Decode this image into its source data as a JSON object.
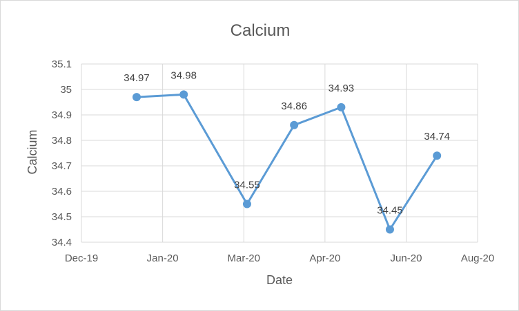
{
  "chart_data": {
    "type": "line",
    "title": "Calcium",
    "xlabel": "Date",
    "ylabel": "Calcium",
    "x_ticks": [
      "Dec-19",
      "Jan-20",
      "Mar-20",
      "Apr-20",
      "Jun-20",
      "Aug-20"
    ],
    "y_ticks": [
      "34.4",
      "34.5",
      "34.6",
      "34.7",
      "34.8",
      "34.9",
      "35",
      "35.1"
    ],
    "ylim": [
      34.4,
      35.1
    ],
    "grid": true,
    "legend": "none",
    "color": "#5b9bd5",
    "series": [
      {
        "points": [
          {
            "x": "2020-01-04",
            "y": 34.97,
            "label": "34.97"
          },
          {
            "x": "2020-02-02",
            "y": 34.98,
            "label": "34.98"
          },
          {
            "x": "2020-03-12",
            "y": 34.55,
            "label": "34.55"
          },
          {
            "x": "2020-04-10",
            "y": 34.86,
            "label": "34.86"
          },
          {
            "x": "2020-05-09",
            "y": 34.93,
            "label": "34.93"
          },
          {
            "x": "2020-06-08",
            "y": 34.45,
            "label": "34.45"
          },
          {
            "x": "2020-07-07",
            "y": 34.74,
            "label": "34.74"
          }
        ]
      }
    ]
  }
}
